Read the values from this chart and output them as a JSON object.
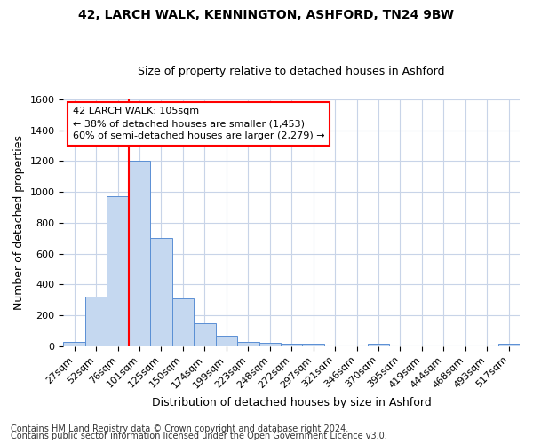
{
  "title": "42, LARCH WALK, KENNINGTON, ASHFORD, TN24 9BW",
  "subtitle": "Size of property relative to detached houses in Ashford",
  "xlabel": "Distribution of detached houses by size in Ashford",
  "ylabel": "Number of detached properties",
  "footnote1": "Contains HM Land Registry data © Crown copyright and database right 2024.",
  "footnote2": "Contains public sector information licensed under the Open Government Licence v3.0.",
  "categories": [
    "27sqm",
    "52sqm",
    "76sqm",
    "101sqm",
    "125sqm",
    "150sqm",
    "174sqm",
    "199sqm",
    "223sqm",
    "248sqm",
    "272sqm",
    "297sqm",
    "321sqm",
    "346sqm",
    "370sqm",
    "395sqm",
    "419sqm",
    "444sqm",
    "468sqm",
    "493sqm",
    "517sqm"
  ],
  "values": [
    30,
    320,
    970,
    1200,
    700,
    310,
    150,
    70,
    30,
    20,
    15,
    15,
    0,
    0,
    15,
    0,
    0,
    0,
    0,
    0,
    15
  ],
  "bar_color": "#c5d8f0",
  "bar_edge_color": "#5a8fd4",
  "grid_color": "#c8d4e8",
  "background_color": "#ffffff",
  "vline_color": "red",
  "annotation_line1": "42 LARCH WALK: 105sqm",
  "annotation_line2": "← 38% of detached houses are smaller (1,453)",
  "annotation_line3": "60% of semi-detached houses are larger (2,279) →",
  "annotation_box_edgecolor": "red",
  "ylim": [
    0,
    1600
  ],
  "yticks": [
    0,
    200,
    400,
    600,
    800,
    1000,
    1200,
    1400,
    1600
  ],
  "title_fontsize": 10,
  "subtitle_fontsize": 9,
  "axis_label_fontsize": 9,
  "tick_fontsize": 8,
  "annotation_fontsize": 8,
  "footnote_fontsize": 7
}
